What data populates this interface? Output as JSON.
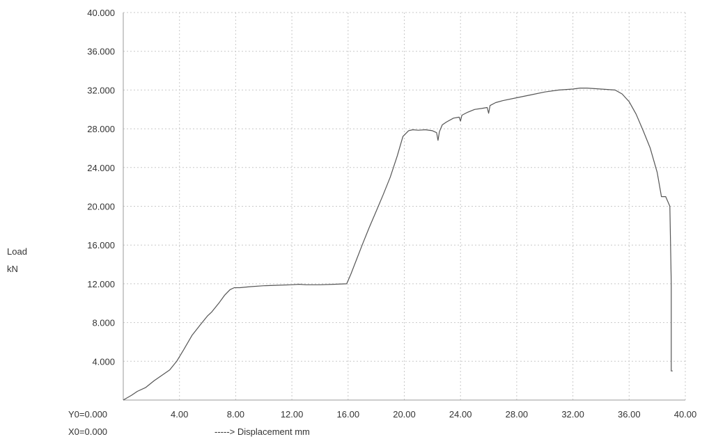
{
  "chart_data": {
    "type": "line",
    "title": "",
    "ylabel_line1": "Load",
    "ylabel_line2": "kN",
    "xlabel": "-----> Displacement mm",
    "origin_y_label": "Y0=0.000",
    "origin_x_label": "X0=0.000",
    "xlim": [
      0,
      40
    ],
    "ylim": [
      0,
      40
    ],
    "x_ticks": [
      4,
      8,
      12,
      16,
      20,
      24,
      28,
      32,
      36,
      40
    ],
    "x_tick_labels": [
      "4.00",
      "8.00",
      "12.00",
      "16.00",
      "20.00",
      "24.00",
      "28.00",
      "32.00",
      "36.00",
      "40.00"
    ],
    "y_ticks": [
      4,
      8,
      12,
      16,
      20,
      24,
      28,
      32,
      36,
      40
    ],
    "y_tick_labels": [
      "4.000",
      "8.000",
      "12.000",
      "16.000",
      "20.000",
      "24.000",
      "28.000",
      "32.000",
      "36.000",
      "40.000"
    ],
    "grid": true,
    "line_color": "#555555",
    "series": [
      {
        "x": [
          0,
          0.6,
          1.0,
          1.6,
          2.2,
          2.8,
          3.3,
          3.8,
          4.3,
          4.9,
          5.5,
          6.0,
          6.3,
          6.8,
          7.2,
          7.6,
          7.9,
          8.3,
          9.0,
          10.0,
          11.0,
          12.0,
          12.5,
          13.0,
          14.0,
          15.0,
          15.9,
          16.2,
          16.6,
          17.0,
          17.5,
          18.0,
          18.5,
          19.0,
          19.5,
          19.9,
          20.3,
          20.6,
          21.0,
          21.5,
          22.0,
          22.3,
          22.4,
          22.5,
          22.7,
          23.0,
          23.5,
          23.9,
          24.0,
          24.1,
          24.5,
          25.0,
          25.5,
          25.9,
          26.0,
          26.1,
          26.5,
          27.0,
          28.0,
          29.0,
          30.0,
          31.0,
          32.0,
          32.5,
          33.0,
          34.0,
          35.0,
          35.5,
          36.0,
          36.5,
          37.0,
          37.5,
          38.0,
          38.3,
          38.5,
          38.6,
          38.9,
          39.0,
          39.0,
          39.1
        ],
        "y": [
          0,
          0.5,
          0.9,
          1.3,
          2.0,
          2.6,
          3.1,
          4.0,
          5.2,
          6.7,
          7.8,
          8.7,
          9.1,
          10.0,
          10.8,
          11.4,
          11.6,
          11.6,
          11.7,
          11.8,
          11.85,
          11.9,
          11.95,
          11.9,
          11.9,
          11.95,
          12.0,
          13.0,
          14.5,
          16.0,
          17.8,
          19.5,
          21.2,
          23.0,
          25.2,
          27.2,
          27.8,
          27.9,
          27.85,
          27.9,
          27.8,
          27.6,
          26.8,
          27.7,
          28.4,
          28.7,
          29.1,
          29.2,
          28.8,
          29.4,
          29.7,
          30.0,
          30.1,
          30.2,
          29.6,
          30.4,
          30.7,
          30.9,
          31.2,
          31.5,
          31.8,
          32.0,
          32.1,
          32.2,
          32.2,
          32.1,
          32.0,
          31.6,
          30.8,
          29.5,
          27.8,
          26.0,
          23.5,
          21.0,
          21.0,
          21.0,
          20.0,
          12.0,
          3.0,
          3.0
        ]
      }
    ]
  }
}
